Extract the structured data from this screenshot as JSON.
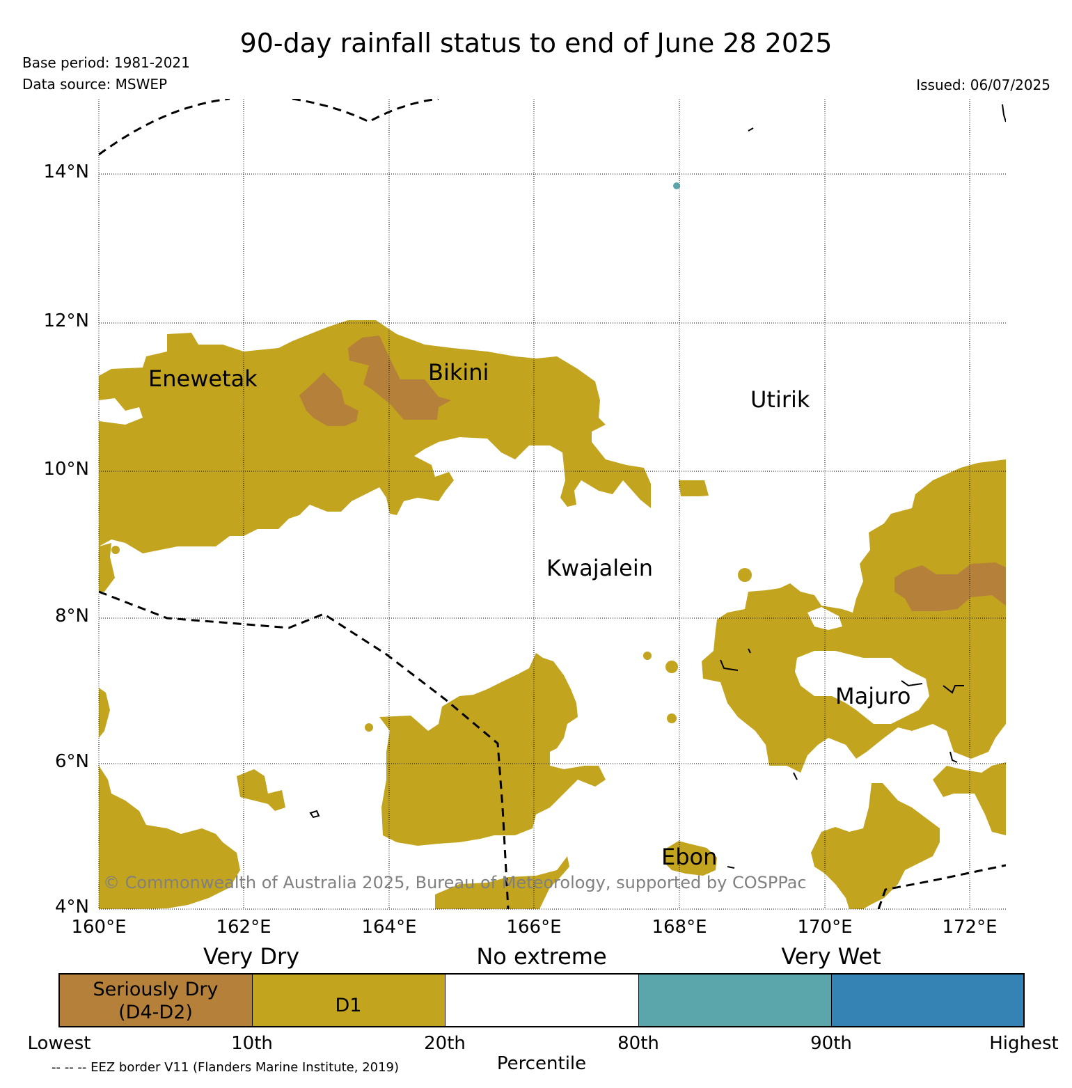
{
  "header": {
    "title": "90-day rainfall status to end of June 28 2025",
    "base_period": "Base period: 1981-2021",
    "data_source": "Data source: MSWEP",
    "issued": "Issued: 06/07/2025"
  },
  "map": {
    "lat_labels": [
      "14°N",
      "12°N",
      "10°N",
      "8°N",
      "6°N",
      "4°N"
    ],
    "lon_labels": [
      "160°E",
      "162°E",
      "164°E",
      "166°E",
      "168°E",
      "170°E",
      "172°E"
    ],
    "places": [
      "Enewetak",
      "Bikini",
      "Utirik",
      "Kwajalein",
      "Majuro",
      "Ebon"
    ],
    "copyright": "© Commonwealth of Australia 2025, Bureau of Meteorology, supported by COSPPac",
    "colors": {
      "seriously_dry": "#b5813a",
      "d1": "#c2a41f",
      "no_extreme": "#ffffff",
      "wet": "#5aa6ab",
      "very_wet": "#3583b5"
    }
  },
  "legend": {
    "categories": [
      "Very Dry",
      "No extreme",
      "Very Wet"
    ],
    "segments": [
      "Seriously Dry",
      "(D4-D2)",
      "D1"
    ],
    "percentiles": [
      "Lowest",
      "10th",
      "20th",
      "80th",
      "90th",
      "Highest"
    ],
    "axis_title": "Percentile",
    "eez_note": "-- -- -- EEZ border V11 (Flanders Marine Institute, 2019)"
  }
}
